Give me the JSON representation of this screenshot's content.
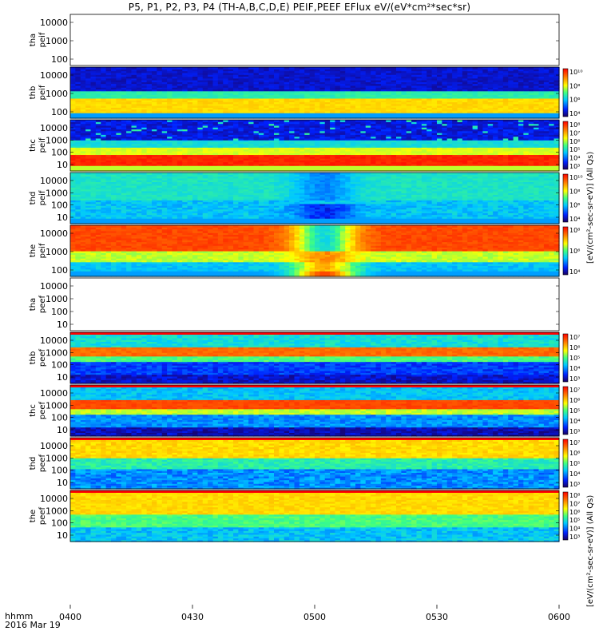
{
  "title": "P5, P1, P2, P3, P4 (TH-A,B,C,D,E) PEIF,PEEF EFlux eV/(eV*cm²*sec*sr)",
  "bottom_labels": {
    "line1": "hhmm",
    "line2": "2016 Mar 19"
  },
  "colorbar_titles": {
    "peif_group": "[eV/(cm²-sec-sr-eV)] (All Qs)",
    "peef_group": "[eV/(cm²-sec-sr-eV)] (All Qs)"
  },
  "chart_data": {
    "type": "heatmap",
    "x": {
      "range": [
        "04:00",
        "06:00"
      ],
      "ticks": [
        "0400",
        "0430",
        "0500",
        "0530",
        "0600"
      ]
    },
    "panels": [
      {
        "label_top": "tha",
        "label_bottom": "peif",
        "yticks": [
          "10000",
          "1000",
          "100"
        ],
        "has_data": false
      },
      {
        "label_top": "thb",
        "label_bottom": "peif",
        "yticks": [
          "10000",
          "1000",
          "100"
        ],
        "has_data": true,
        "pattern": "ion_b",
        "colorbar": [
          "10¹⁰",
          "10⁸",
          "10⁶",
          "10⁴"
        ]
      },
      {
        "label_top": "thc",
        "label_bottom": "peif",
        "yticks": [
          "10000",
          "1000",
          "100",
          "10"
        ],
        "has_data": true,
        "pattern": "ion_c",
        "colorbar": [
          "10⁸",
          "10⁷",
          "10⁶",
          "10⁵",
          "10⁴",
          "10³"
        ]
      },
      {
        "label_top": "thd",
        "label_bottom": "peif",
        "yticks": [
          "10000",
          "1000",
          "100",
          "10"
        ],
        "has_data": true,
        "pattern": "ion_d",
        "colorbar": [
          "10¹⁰",
          "10⁸",
          "10⁶",
          "10⁴"
        ]
      },
      {
        "label_top": "the",
        "label_bottom": "peif",
        "yticks": [
          "10000",
          "1000",
          "100"
        ],
        "has_data": true,
        "pattern": "ion_e",
        "colorbar": [
          "10⁸",
          "10⁶",
          "10⁴"
        ]
      },
      {
        "label_top": "tha",
        "label_bottom": "peef",
        "yticks": [
          "10000",
          "1000",
          "100",
          "10"
        ],
        "has_data": false
      },
      {
        "label_top": "thb",
        "label_bottom": "peef",
        "yticks": [
          "10000",
          "1000",
          "100",
          "10"
        ],
        "has_data": true,
        "pattern": "elec_b",
        "colorbar": [
          "10⁷",
          "10⁶",
          "10⁵",
          "10⁴",
          "10³"
        ]
      },
      {
        "label_top": "thc",
        "label_bottom": "peef",
        "yticks": [
          "10000",
          "1000",
          "100",
          "10"
        ],
        "has_data": true,
        "pattern": "elec_c",
        "colorbar": [
          "10⁷",
          "10⁶",
          "10⁵",
          "10⁴",
          "10³"
        ]
      },
      {
        "label_top": "thd",
        "label_bottom": "peef",
        "yticks": [
          "10000",
          "1000",
          "100",
          "10"
        ],
        "has_data": true,
        "pattern": "elec_d",
        "colorbar": [
          "10⁷",
          "10⁶",
          "10⁵",
          "10⁴",
          "10³"
        ]
      },
      {
        "label_top": "the",
        "label_bottom": "peef",
        "yticks": [
          "10000",
          "1000",
          "100",
          "10"
        ],
        "has_data": true,
        "pattern": "elec_e",
        "colorbar": [
          "10⁸",
          "10⁷",
          "10⁶",
          "10⁵",
          "10⁴",
          "10³"
        ]
      }
    ]
  }
}
